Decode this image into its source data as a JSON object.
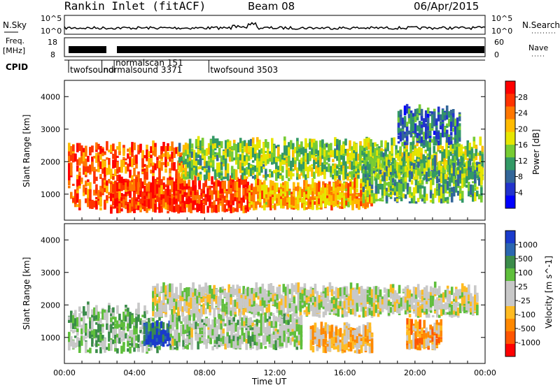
{
  "header": {
    "station": "Rankin Inlet (fitACF)",
    "beam": "Beam 08",
    "date": "06/Apr/2015"
  },
  "strip_panels": {
    "nsky_label": "N.Sky",
    "nsearch_label": "N.Search",
    "noise_ticks": [
      "10^5",
      "10^0"
    ],
    "freq_label_1": "Freq.",
    "freq_label_2": "[MHz]",
    "freq_ticks": [
      "18",
      "8"
    ],
    "nave_label": "Nave",
    "nave_ticks": [
      "60",
      "0"
    ],
    "cpid_label": "CPID",
    "cpid_entries": [
      {
        "name": "twofsound",
        "time": 0.0
      },
      {
        "name": "normalsound 3371",
        "time": 1.9
      },
      {
        "name": "normalscan 151",
        "time": 2.6
      },
      {
        "name": "twofsound 3503",
        "time": 8.0
      }
    ]
  },
  "colorbars": {
    "power": {
      "label": "Power [dB]",
      "ticks": [
        "28",
        "24",
        "20",
        "16",
        "12",
        "8",
        "4"
      ],
      "colors": [
        "#ff0000",
        "#ff3300",
        "#ff7700",
        "#ffbb00",
        "#e6e600",
        "#77cc33",
        "#339966",
        "#336699",
        "#2233cc",
        "#0000ff"
      ]
    },
    "velocity": {
      "label": "Velocity [m s^-1]",
      "ticks": [
        "1000",
        "500",
        "100",
        "25",
        "-25",
        "-100",
        "-500",
        "-1000"
      ],
      "colors": [
        "#1a3bcc",
        "#2a66b0",
        "#3b8c4a",
        "#5fbf3c",
        "#c8c8c8",
        "#c8c8c8",
        "#ffbb22",
        "#ff8800",
        "#ff5500",
        "#ff0000"
      ]
    }
  },
  "chart_data": [
    {
      "type": "heatmap",
      "title": "Rankin Inlet (fitACF) Beam 08 06/Apr/2015",
      "ylabel": "Slant Range [km]",
      "xlabel": "Time UT",
      "x_ticks": [
        "00:00",
        "04:00",
        "08:00",
        "12:00",
        "16:00",
        "20:00",
        "00:00"
      ],
      "y_ticks": [
        1000,
        2000,
        3000,
        4000
      ],
      "xlim": [
        0,
        24
      ],
      "ylim": [
        200,
        4500
      ],
      "quantity": "Power [dB]",
      "color_range": [
        0,
        30
      ],
      "regions": [
        {
          "t0": 0.2,
          "t1": 6.8,
          "r0": 500,
          "r1": 2400,
          "value": 24
        },
        {
          "t0": 2.6,
          "t1": 10.5,
          "r0": 400,
          "r1": 1300,
          "value": 26
        },
        {
          "t0": 6.5,
          "t1": 23.8,
          "r0": 1400,
          "r1": 2500,
          "value": 14
        },
        {
          "t0": 10.5,
          "t1": 17.5,
          "r0": 500,
          "r1": 1200,
          "value": 20
        },
        {
          "t0": 17.0,
          "t1": 23.8,
          "r0": 700,
          "r1": 1900,
          "value": 12
        },
        {
          "t0": 19.0,
          "t1": 22.5,
          "r0": 2500,
          "r1": 3500,
          "value": 8
        }
      ]
    },
    {
      "type": "heatmap",
      "ylabel": "Slant Range [km]",
      "xlabel": "Time UT",
      "x_ticks": [
        "00:00",
        "04:00",
        "08:00",
        "12:00",
        "16:00",
        "20:00",
        "00:00"
      ],
      "y_ticks": [
        1000,
        2000,
        3000,
        4000
      ],
      "xlim": [
        0,
        24
      ],
      "ylim": [
        200,
        4500
      ],
      "quantity": "Velocity [m s^-1]",
      "regions": [
        {
          "t0": 0.2,
          "t1": 5.5,
          "r0": 500,
          "r1": 1800,
          "value": 300
        },
        {
          "t0": 4.5,
          "t1": 6.0,
          "r0": 700,
          "r1": 1300,
          "value": 1000
        },
        {
          "t0": 5.0,
          "t1": 23.5,
          "r0": 1600,
          "r1": 2400,
          "value": 0
        },
        {
          "t0": 6.0,
          "t1": 13.5,
          "r0": 600,
          "r1": 1500,
          "value": 150
        },
        {
          "t0": 14.0,
          "t1": 17.5,
          "r0": 500,
          "r1": 1200,
          "value": -300
        },
        {
          "t0": 19.5,
          "t1": 21.5,
          "r0": 600,
          "r1": 1300,
          "value": -500
        }
      ]
    }
  ]
}
